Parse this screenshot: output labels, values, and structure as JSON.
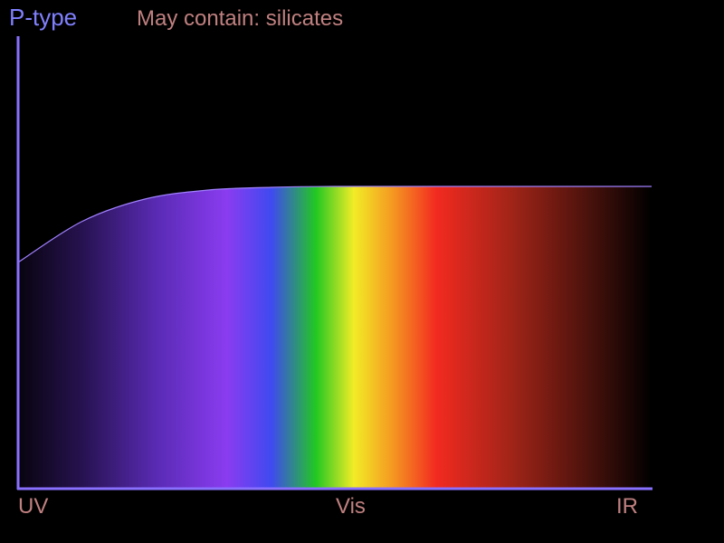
{
  "colors": {
    "background": "#000000",
    "title": "#8080ff",
    "subtitle": "#c08080",
    "axis": "#8a70ff",
    "tick_label": "#c08080"
  },
  "chart_data": {
    "type": "area",
    "title": "P-type",
    "subtitle": "May contain: silicates",
    "xlabel": "",
    "ylabel": "",
    "grid": false,
    "x_tick_labels": [
      "UV",
      "Vis",
      "IR"
    ],
    "x": [
      0,
      10,
      20,
      30,
      40,
      50,
      60,
      70,
      80,
      90,
      100
    ],
    "values": [
      0.5,
      0.59,
      0.64,
      0.66,
      0.666,
      0.668,
      0.668,
      0.668,
      0.668,
      0.668,
      0.668
    ],
    "xlim": [
      0,
      100
    ],
    "ylim": [
      0,
      1
    ],
    "fill": "visible-spectrum gradient (UV to IR)"
  }
}
